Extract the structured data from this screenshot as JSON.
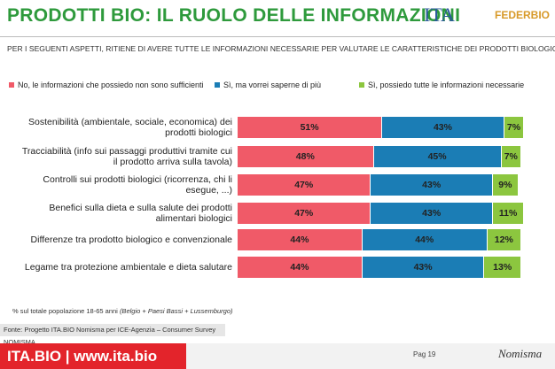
{
  "header": {
    "title": "PRODOTTI BIO: IL RUOLO DELLE INFORMAZIONI",
    "logo_left": "ITA",
    "logo_right": "FEDERBIO"
  },
  "chart_data": {
    "type": "bar",
    "orientation": "horizontal",
    "stacked": true,
    "subtitle": "PER I SEGUENTI ASPETTI, RITIENE DI AVERE TUTTE LE INFORMAZIONI NECESSARIE PER VALUTARE LE CARATTERISTICHE DEI PRODOTTI BIOLOGICI?",
    "categories": [
      "Sostenibilità (ambientale, sociale, economica) dei prodotti biologici",
      "Tracciabilità (info sui passaggi produttivi tramite cui il prodotto arriva sulla tavola)",
      "Controlli sui prodotti biologici (ricorrenza, chi li esegue, ...)",
      "Benefici sulla dieta e sulla salute dei prodotti alimentari biologici",
      "Differenze tra prodotto biologico e convenzionale",
      "Legame tra protezione ambientale e dieta salutare"
    ],
    "series": [
      {
        "name": "No, le informazioni che possiedo non sono sufficienti",
        "color": "#f05a68",
        "values": [
          51,
          48,
          47,
          47,
          44,
          44
        ],
        "value_labels": [
          "51%",
          "48%",
          "47%",
          "47%",
          "44%",
          "44%"
        ]
      },
      {
        "name": "Sì, ma vorrei saperne di più",
        "color": "#1b7db5",
        "values": [
          43,
          45,
          43,
          43,
          44,
          43
        ],
        "value_labels": [
          "43%",
          "45%",
          "43%",
          "43%",
          "44%",
          "43%"
        ]
      },
      {
        "name": "Sì, possiedo tutte le informazioni necessarie",
        "color": "#8cc63f",
        "values": [
          7,
          7,
          9,
          11,
          12,
          13
        ],
        "value_labels": [
          "7%",
          "7%",
          "9%",
          "11%",
          "12%",
          "13%"
        ]
      }
    ],
    "legend": "top",
    "note": "% sul totale popolazione 18-65 anni",
    "note_detail": "(Belgio + Paesi Bassi + Lussemburgo)",
    "source": "Fonte: Progetto ITA.BIO Nomisma per ICE-Agenzia – Consumer Survey NOMISMA"
  },
  "footer": {
    "brand": "ITA.BIO",
    "url": "www.ita.bio",
    "page": "Pag 19",
    "company": "Nomisma"
  }
}
